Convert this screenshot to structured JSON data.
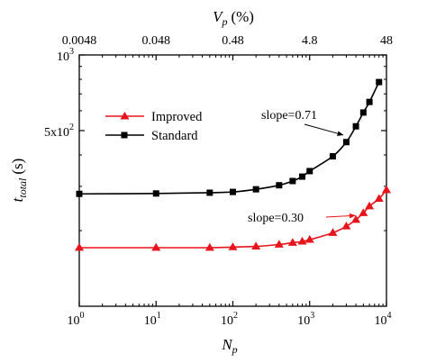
{
  "chart_data": {
    "type": "line",
    "xlabel": "N",
    "xlabel_sub": "p",
    "x2label": "V",
    "x2label_sub": "p",
    "x2label_unit": "(%)",
    "ylabel": "t",
    "ylabel_sub": "total",
    "ylabel_unit": "(s)",
    "xscale": "log",
    "yscale": "log",
    "xlim": [
      1,
      10000
    ],
    "ylim": [
      100,
      1000
    ],
    "x_ticks": [
      1,
      10,
      100,
      1000,
      10000
    ],
    "x_tick_labels": [
      {
        "base": "10",
        "exp": "0"
      },
      {
        "base": "10",
        "exp": "1"
      },
      {
        "base": "10",
        "exp": "2"
      },
      {
        "base": "10",
        "exp": "3"
      },
      {
        "base": "10",
        "exp": "4"
      }
    ],
    "x2_ticks": [
      {
        "n": 1,
        "label": "0.0048"
      },
      {
        "n": 10,
        "label": "0.048"
      },
      {
        "n": 100,
        "label": "0.48"
      },
      {
        "n": 1000,
        "label": "4.8"
      },
      {
        "n": 10000,
        "label": "48"
      }
    ],
    "y_ticks": [
      {
        "value": 1000,
        "base": "10",
        "exp": "3"
      },
      {
        "value": 500,
        "base": "5x10",
        "exp": "2"
      }
    ],
    "legend_position": "upper-left",
    "series": [
      {
        "name": "Improved",
        "color": "#e8141c",
        "marker": "triangle",
        "x": [
          1,
          10,
          50,
          100,
          200,
          400,
          600,
          800,
          1000,
          2000,
          3000,
          4000,
          5000,
          6000,
          8000,
          10000
        ],
        "y": [
          171,
          171,
          171,
          172,
          173,
          176,
          179,
          181,
          184,
          196,
          208,
          221,
          235,
          250,
          268,
          290
        ]
      },
      {
        "name": "Standard",
        "color": "#000000",
        "marker": "square",
        "x": [
          1,
          10,
          50,
          100,
          200,
          400,
          600,
          800,
          1000,
          2000,
          3000,
          4000,
          5000,
          6000,
          8000
        ],
        "y": [
          280,
          281,
          283,
          285,
          292,
          303,
          315,
          328,
          345,
          395,
          450,
          520,
          590,
          650,
          780
        ]
      }
    ],
    "annotations": [
      {
        "text": "slope=0.71",
        "series": "Standard",
        "target_x": 3200
      },
      {
        "text": "slope=0.30",
        "series": "Improved",
        "target_x": 4600
      }
    ]
  }
}
